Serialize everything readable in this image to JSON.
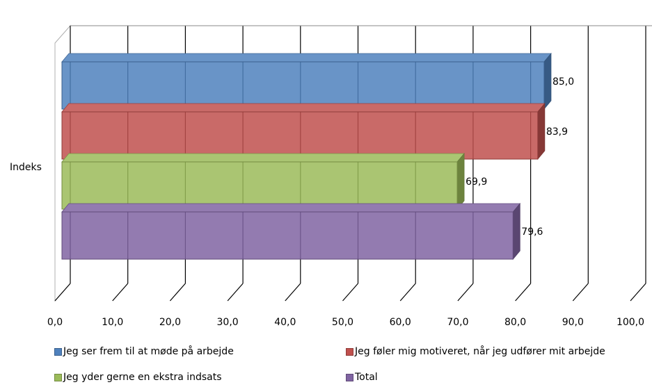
{
  "chart_data": {
    "type": "bar",
    "orientation": "horizontal",
    "three_d": true,
    "categories": [
      "Indeks"
    ],
    "series": [
      {
        "name": "Jeg ser frem til at møde på arbejde",
        "values": [
          85.0
        ],
        "label": "85,0",
        "color": "#4F81BD"
      },
      {
        "name": "Jeg føler mig motiveret, når jeg udfører mit arbejde",
        "values": [
          83.9
        ],
        "label": "83,9",
        "color": "#C0504D"
      },
      {
        "name": "Jeg yder gerne en ekstra indsats",
        "values": [
          69.9
        ],
        "label": "69,9",
        "color": "#9BBB59"
      },
      {
        "name": "Total",
        "values": [
          79.6
        ],
        "label": "79,6",
        "color": "#8064A2"
      }
    ],
    "xlim": [
      0,
      100
    ],
    "xticks": [
      "0,0",
      "10,0",
      "20,0",
      "30,0",
      "40,0",
      "50,0",
      "60,0",
      "70,0",
      "80,0",
      "90,0",
      "100,0"
    ],
    "grid": true,
    "legend_position": "bottom"
  }
}
